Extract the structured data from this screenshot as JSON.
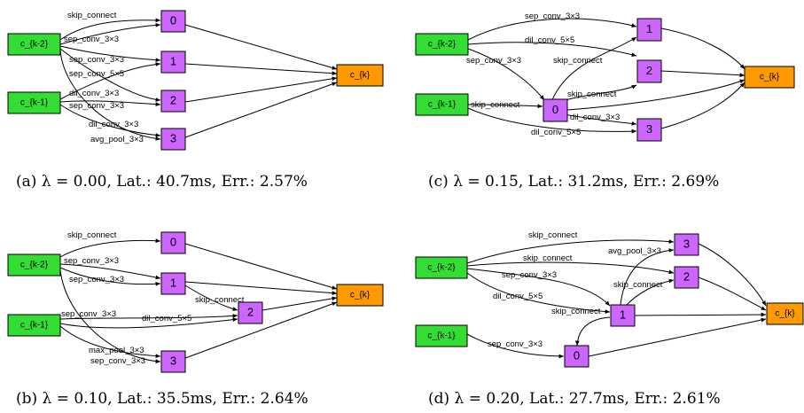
{
  "colors": {
    "input_node": "#33dd33",
    "inter_node": "#cc66ff",
    "output_node": "#ff9900"
  },
  "panels": {
    "a": {
      "caption": "(a) λ = 0.00, Lat.: 40.7ms, Err.: 2.57%",
      "nodes": {
        "ck2": "c_{k-2}",
        "ck1": "c_{k-1}",
        "n0": "0",
        "n1": "1",
        "n2": "2",
        "n3": "3",
        "ck": "c_{k}"
      },
      "ops": [
        "skip_connect",
        "sep_conv_3×3",
        "sep_conv_3×3",
        "sep_conv_5×5",
        "dil_conv_3×3",
        "sep_conv_3×3",
        "dil_conv_3×3",
        "avg_pool_3×3"
      ]
    },
    "b": {
      "caption": "(b) λ = 0.10, Lat.: 35.5ms, Err.: 2.64%",
      "nodes": {
        "ck2": "c_{k-2}",
        "ck1": "c_{k-1}",
        "n0": "0",
        "n1": "1",
        "n2": "2",
        "n3": "3",
        "ck": "c_{k}"
      },
      "ops": [
        "skip_connect",
        "sep_conv_3×3",
        "sep_conv_3×3",
        "skip_connect",
        "sep_conv_3×3",
        "dil_conv_5×5",
        "max_pool_3×3",
        "sep_conv_3×3"
      ]
    },
    "c": {
      "caption": "(c) λ = 0.15, Lat.: 31.2ms, Err.: 2.69%",
      "nodes": {
        "ck2": "c_{k-2}",
        "ck1": "c_{k-1}",
        "n0": "0",
        "n1": "1",
        "n2": "2",
        "n3": "3",
        "ck": "c_{k}"
      },
      "ops": [
        "sep_conv_3×3",
        "dil_conv_5×5",
        "sep_conv_3×3",
        "skip_connect",
        "skip_connect",
        "skip_connect",
        "dil_conv_3×3",
        "dil_conv_5×5"
      ]
    },
    "d": {
      "caption": "(d) λ = 0.20, Lat.: 27.7ms, Err.: 2.61%",
      "nodes": {
        "ck2": "c_{k-2}",
        "ck1": "c_{k-1}",
        "n0": "0",
        "n1": "1",
        "n2": "2",
        "n3": "3",
        "ck": "c_{k}"
      },
      "ops": [
        "skip_connect",
        "avg_pool_3×3",
        "skip_connect",
        "sep_conv_3×3",
        "skip_connect",
        "dil_conv_5×5",
        "skip_connect",
        "sep_conv_3×3"
      ]
    }
  }
}
